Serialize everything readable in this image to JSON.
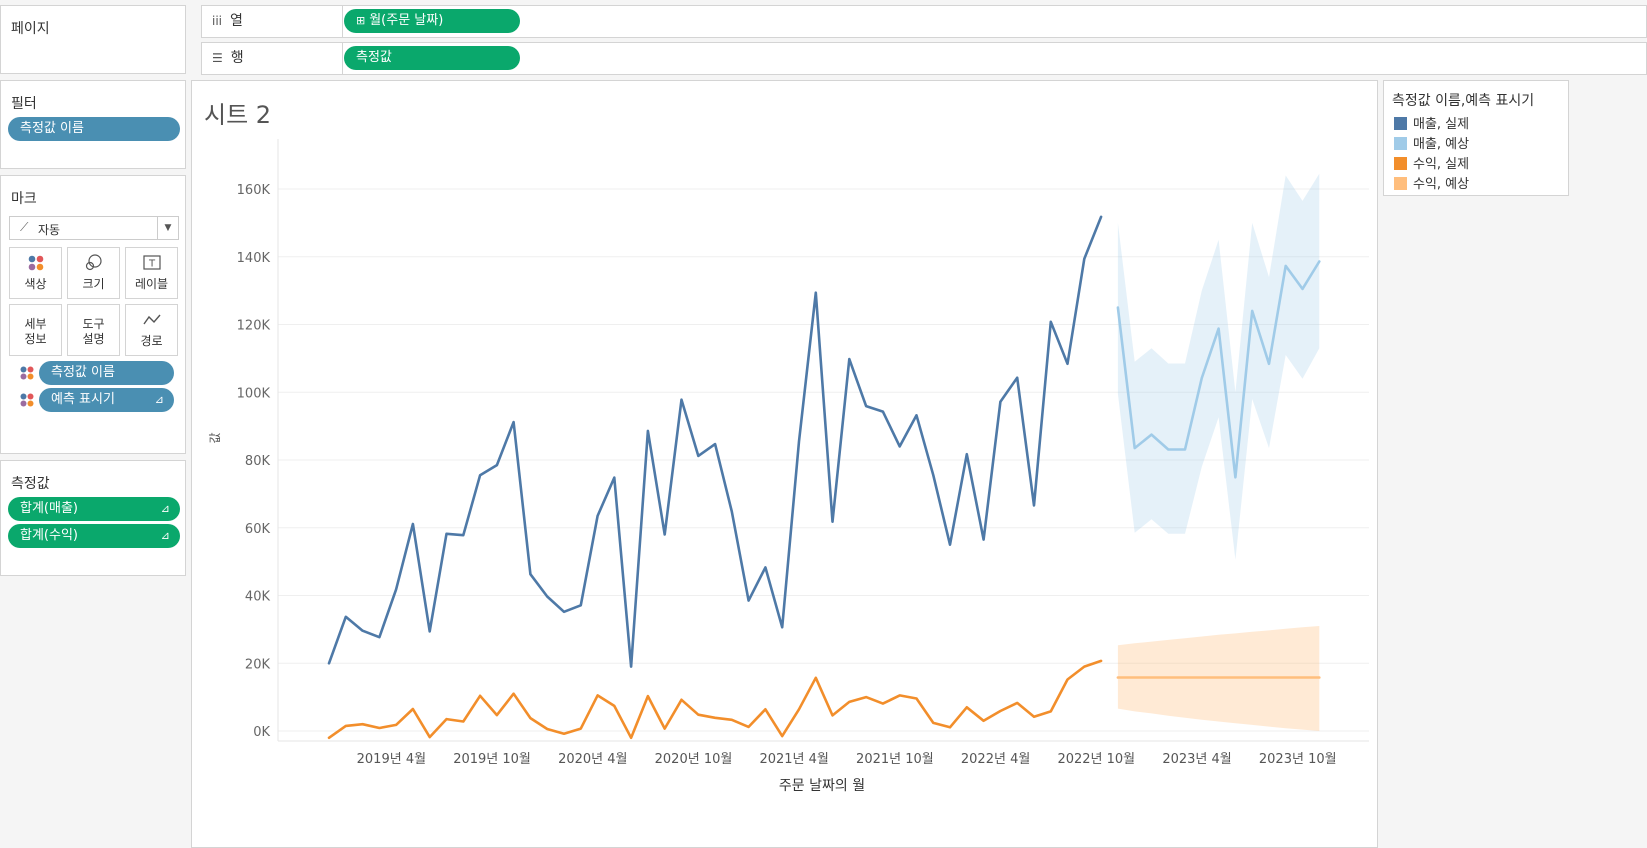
{
  "pages_panel": {
    "title": "페이지"
  },
  "columns_shelf": {
    "label": "열",
    "icon": "columns-icon",
    "pill": "월(주문 날짜)",
    "pill_icon": "plus-box-icon"
  },
  "rows_shelf": {
    "label": "행",
    "icon": "rows-icon",
    "pill": "측정값"
  },
  "filters_panel": {
    "title": "필터",
    "pill": "측정값 이름"
  },
  "marks_panel": {
    "title": "마크",
    "mark_type": "자동",
    "cards": [
      {
        "label": "색상",
        "icon": "color-icon"
      },
      {
        "label": "크기",
        "icon": "size-icon"
      },
      {
        "label": "레이블",
        "icon": "label-icon"
      },
      {
        "label": "세부\n정보",
        "icon": "detail-icon"
      },
      {
        "label": "도구\n설명",
        "icon": "tooltip-icon"
      },
      {
        "label": "경로",
        "icon": "path-icon"
      }
    ],
    "pills": [
      {
        "label": "측정값 이름",
        "icon": "color-dots-icon"
      },
      {
        "label": "예측 표시기",
        "icon": "color-dots-icon",
        "trailing_icon": "forecast-icon"
      }
    ]
  },
  "measure_values_panel": {
    "title": "측정값",
    "pills": [
      {
        "label": "합계(매출)",
        "trailing_icon": "forecast-icon"
      },
      {
        "label": "합계(수익)",
        "trailing_icon": "forecast-icon"
      }
    ]
  },
  "sheet": {
    "title": "시트 2"
  },
  "legend": {
    "title": "측정값 이름,예측 표시기",
    "items": [
      {
        "label": "매출, 실제",
        "color": "#4e79a7"
      },
      {
        "label": "매출, 예상",
        "color": "#a0cbe8"
      },
      {
        "label": "수익, 실제",
        "color": "#f28e2b"
      },
      {
        "label": "수익, 예상",
        "color": "#ffbe7d"
      }
    ]
  },
  "chart_data": {
    "type": "line",
    "xlabel": "주문 날짜의 월",
    "ylabel": "값",
    "ylim": [
      -3000,
      175000
    ],
    "x_start": "2019-01",
    "x_ticks": [
      {
        "label": "2019년 4월",
        "month_index": 3
      },
      {
        "label": "2019년 10월",
        "month_index": 9
      },
      {
        "label": "2020년 4월",
        "month_index": 15
      },
      {
        "label": "2020년 10월",
        "month_index": 21
      },
      {
        "label": "2021년 4월",
        "month_index": 27
      },
      {
        "label": "2021년 10월",
        "month_index": 33
      },
      {
        "label": "2022년 4월",
        "month_index": 39
      },
      {
        "label": "2022년 10월",
        "month_index": 45
      },
      {
        "label": "2023년 4월",
        "month_index": 51
      },
      {
        "label": "2023년 10월",
        "month_index": 57
      }
    ],
    "y_ticks": [
      {
        "label": "0K",
        "value": 0
      },
      {
        "label": "20K",
        "value": 20000
      },
      {
        "label": "40K",
        "value": 40000
      },
      {
        "label": "60K",
        "value": 60000
      },
      {
        "label": "80K",
        "value": 80000
      },
      {
        "label": "100K",
        "value": 100000
      },
      {
        "label": "120K",
        "value": 120000
      },
      {
        "label": "140K",
        "value": 140000
      },
      {
        "label": "160K",
        "value": 160000
      }
    ],
    "grid": true,
    "series": [
      {
        "name": "매출, 실제",
        "color": "#4e79a7",
        "start_index": 0,
        "values": [
          20000,
          33700,
          29600,
          27700,
          41800,
          61100,
          29400,
          58200,
          57800,
          75500,
          78500,
          91200,
          46300,
          39700,
          35200,
          37100,
          63500,
          74800,
          19000,
          88600,
          58000,
          97800,
          81200,
          84700,
          64800,
          38500,
          48300,
          30600,
          85500,
          129400,
          61800,
          109800,
          95900,
          94300,
          84000,
          93200,
          75500,
          55000,
          81700,
          56500,
          97200,
          104300,
          66600,
          120800,
          108400,
          139400,
          151800
        ],
        "band_lower": null,
        "band_upper": null
      },
      {
        "name": "매출, 예상",
        "color": "#a0cbe8",
        "start_index": 47,
        "values": [
          125000,
          83500,
          87500,
          83100,
          83100,
          104200,
          118800,
          74900,
          124000,
          108400,
          137300,
          130500,
          138600
        ],
        "band_lower": [
          99500,
          58500,
          62500,
          58200,
          58200,
          78000,
          92600,
          50600,
          98000,
          83500,
          111000,
          104000,
          113000
        ],
        "band_upper": [
          150000,
          109000,
          113000,
          108500,
          108500,
          130000,
          145000,
          100000,
          150000,
          134000,
          164000,
          156500,
          164500
        ]
      },
      {
        "name": "수익, 실제",
        "color": "#f28e2b",
        "start_index": 0,
        "values": [
          -2000,
          1500,
          2000,
          900,
          1800,
          6500,
          -1800,
          3500,
          2800,
          10400,
          4700,
          11000,
          3800,
          600,
          -800,
          700,
          10500,
          7400,
          -2000,
          10300,
          700,
          9200,
          4800,
          3900,
          3300,
          1200,
          6400,
          -1500,
          6400,
          15700,
          4600,
          8600,
          10000,
          8100,
          10500,
          9600,
          2400,
          1100,
          7000,
          3000,
          5900,
          8300,
          4200,
          5800,
          15200,
          19000,
          20700
        ],
        "band_lower": null,
        "band_upper": null
      },
      {
        "name": "수익, 예상",
        "color": "#ffbe7d",
        "start_index": 47,
        "values": [
          15800,
          15800,
          15800,
          15800,
          15800,
          15800,
          15800,
          15800,
          15800,
          15800,
          15800,
          15800,
          15800
        ],
        "band_lower": [
          6600,
          5800,
          5200,
          4500,
          3900,
          3300,
          2800,
          2300,
          1800,
          1300,
          800,
          400,
          0
        ],
        "band_upper": [
          25300,
          25900,
          26400,
          26900,
          27400,
          27900,
          28400,
          28800,
          29300,
          29700,
          30200,
          30600,
          31000
        ]
      }
    ]
  }
}
